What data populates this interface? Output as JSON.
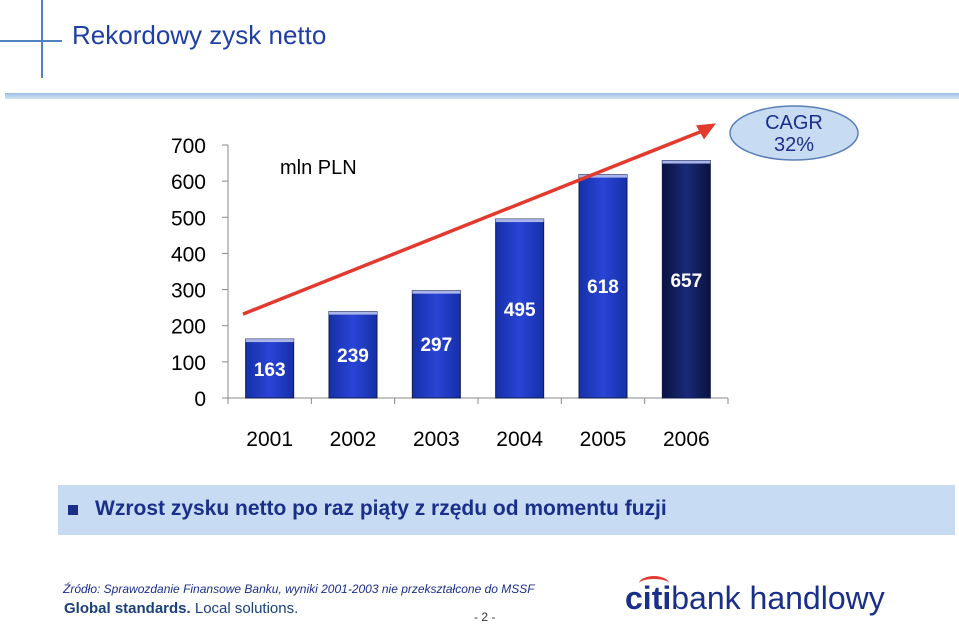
{
  "slide": {
    "title": "Rekordowy zysk netto",
    "banner_text": "Wzrost zysku netto po raz piąty z rzędu od momentu fuzji",
    "source_note": "Źródło: Sprawozdanie Finansowe Banku, wyniki 2001-2003 nie przekształcone do MSSF",
    "tagline_part1": "Global standards.",
    "tagline_part2": "Local solutions.",
    "page_number": "- 2 -",
    "logo_citi": "citi",
    "logo_rest": "bank handlowy"
  },
  "chart_data": {
    "type": "bar",
    "unit_label": "mln PLN",
    "categories": [
      "2001",
      "2002",
      "2003",
      "2004",
      "2005",
      "2006"
    ],
    "values": [
      163,
      239,
      297,
      495,
      618,
      657
    ],
    "value_labels": [
      "163",
      "239",
      "297",
      "495",
      "618",
      "657"
    ],
    "ylim": [
      0,
      700
    ],
    "yticks": [
      0,
      100,
      200,
      300,
      400,
      500,
      600,
      700
    ],
    "trend_annotation": "CAGR\n32%",
    "trend_line": [
      163,
      760
    ],
    "colors": {
      "bar": "#2a44d6",
      "bar_last": "#0a1240",
      "trend": "#e23a2e",
      "callout_fill": "#c7dcf3",
      "callout_border": "#5a7fb8"
    }
  }
}
